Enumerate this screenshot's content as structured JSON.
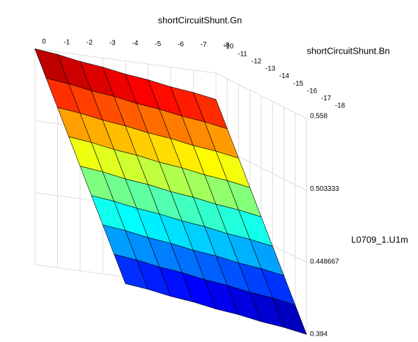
{
  "chart_data": {
    "type": "surface",
    "x_label": "shortCircuitShunt.Gn",
    "y_label": "shortCircuitShunt.Bn",
    "z_label": "L0709_1.U1m",
    "x": [
      0,
      -1,
      -2,
      -3,
      -4,
      -5,
      -6,
      -7,
      -8
    ],
    "y": [
      -10,
      -11,
      -12,
      -13,
      -14,
      -15,
      -16,
      -17,
      -18
    ],
    "z": [
      [
        0.558,
        0.556,
        0.553,
        0.551,
        0.548,
        0.546,
        0.543,
        0.541,
        0.538
      ],
      [
        0.54,
        0.538,
        0.535,
        0.533,
        0.53,
        0.528,
        0.525,
        0.523,
        0.52
      ],
      [
        0.522,
        0.52,
        0.517,
        0.515,
        0.512,
        0.51,
        0.507,
        0.505,
        0.502
      ],
      [
        0.504,
        0.502,
        0.499,
        0.497,
        0.494,
        0.492,
        0.489,
        0.487,
        0.484
      ],
      [
        0.486,
        0.484,
        0.481,
        0.479,
        0.476,
        0.474,
        0.471,
        0.469,
        0.466
      ],
      [
        0.468,
        0.466,
        0.463,
        0.461,
        0.458,
        0.456,
        0.453,
        0.451,
        0.448
      ],
      [
        0.45,
        0.448,
        0.445,
        0.443,
        0.44,
        0.438,
        0.435,
        0.433,
        0.43
      ],
      [
        0.432,
        0.43,
        0.427,
        0.425,
        0.422,
        0.42,
        0.417,
        0.415,
        0.412
      ],
      [
        0.414,
        0.412,
        0.409,
        0.407,
        0.404,
        0.402,
        0.399,
        0.397,
        0.394
      ]
    ],
    "xlim": [
      0,
      -8
    ],
    "ylim": [
      -10,
      -18
    ],
    "zlim": [
      0.394,
      0.558
    ],
    "xticks": [
      0,
      -1,
      -2,
      -3,
      -4,
      -5,
      -6,
      -7,
      -8
    ],
    "yticks": [
      -10,
      -11,
      -12,
      -13,
      -14,
      -15,
      -16,
      -17,
      -18
    ],
    "zticks": [
      0.558,
      0.503333,
      0.448667,
      0.394
    ],
    "colormap": "jet",
    "grid": true
  }
}
